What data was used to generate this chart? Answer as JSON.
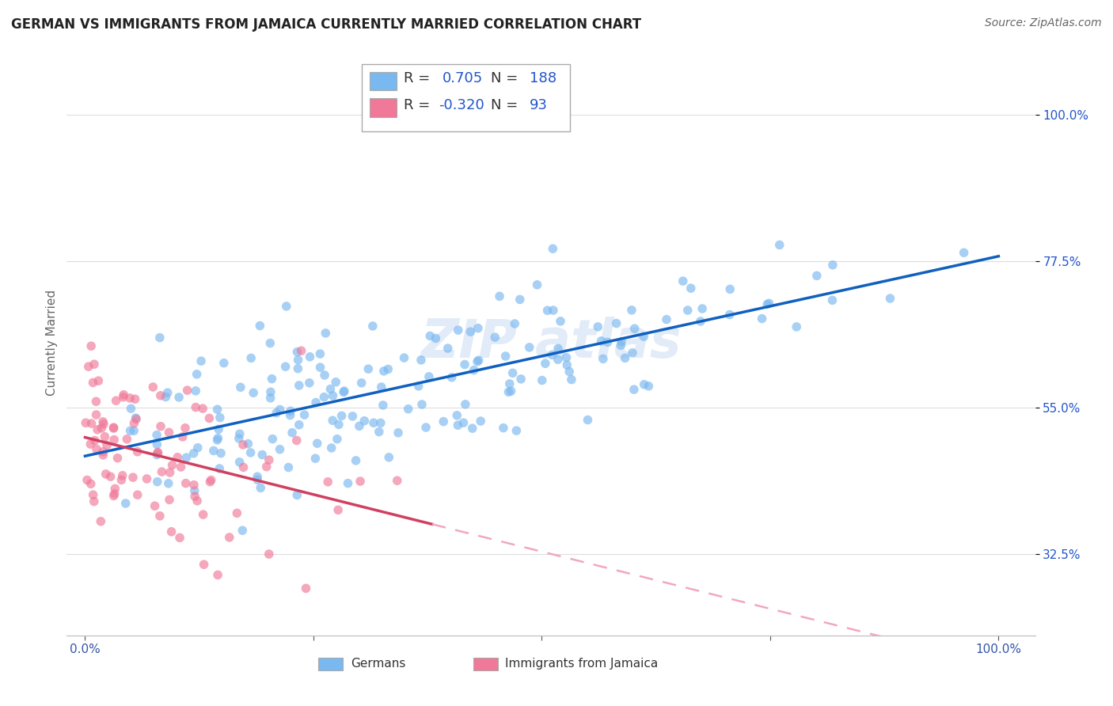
{
  "title": "GERMAN VS IMMIGRANTS FROM JAMAICA CURRENTLY MARRIED CORRELATION CHART",
  "source": "Source: ZipAtlas.com",
  "ylabel": "Currently Married",
  "ytick_vals": [
    0.325,
    0.55,
    0.775,
    1.0
  ],
  "ytick_labels": [
    "32.5%",
    "55.0%",
    "77.5%",
    "100.0%"
  ],
  "german_color": "#7ab8f0",
  "jamaica_color": "#f07898",
  "german_line_color": "#1060c0",
  "jamaica_line_color": "#d04060",
  "jamaica_dashed_color": "#f0a8c0",
  "watermark": "ZIP atlas",
  "r_german": 0.705,
  "n_german": 188,
  "r_jamaica": -0.32,
  "n_jamaica": 93,
  "background_color": "#ffffff",
  "grid_color": "#dddddd",
  "title_fontsize": 12,
  "axis_label_color": "#2255cc",
  "title_color": "#222222"
}
